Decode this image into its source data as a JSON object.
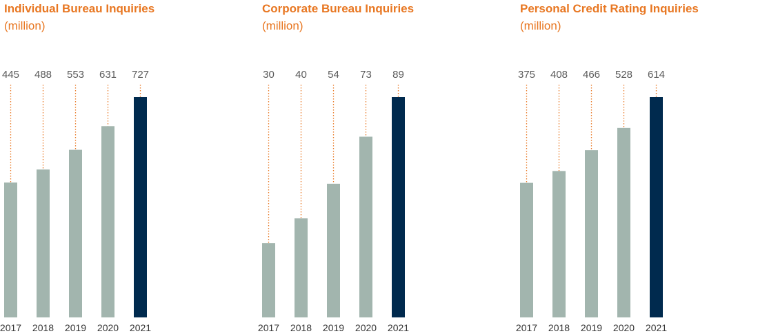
{
  "colors": {
    "title": "#e87722",
    "bar": "#a2b5ae",
    "bar_highlight": "#002a4e",
    "leader": "#e87722"
  },
  "chart_data": [
    {
      "type": "bar",
      "title": "Individual Bureau Inquiries",
      "subtitle": "(million)",
      "categories": [
        "2017",
        "2018",
        "2019",
        "2020",
        "2021"
      ],
      "values": [
        445,
        488,
        553,
        631,
        727
      ],
      "highlight_index": 4
    },
    {
      "type": "bar",
      "title": "Corporate Bureau Inquiries",
      "subtitle": "(million)",
      "categories": [
        "2017",
        "2018",
        "2019",
        "2020",
        "2021"
      ],
      "values": [
        30,
        40,
        54,
        73,
        89
      ],
      "highlight_index": 4
    },
    {
      "type": "bar",
      "title": "Personal Credit Rating Inquiries",
      "subtitle": "(million)",
      "categories": [
        "2017",
        "2018",
        "2019",
        "2020",
        "2021"
      ],
      "values": [
        375,
        408,
        466,
        528,
        614
      ],
      "highlight_index": 4
    }
  ]
}
